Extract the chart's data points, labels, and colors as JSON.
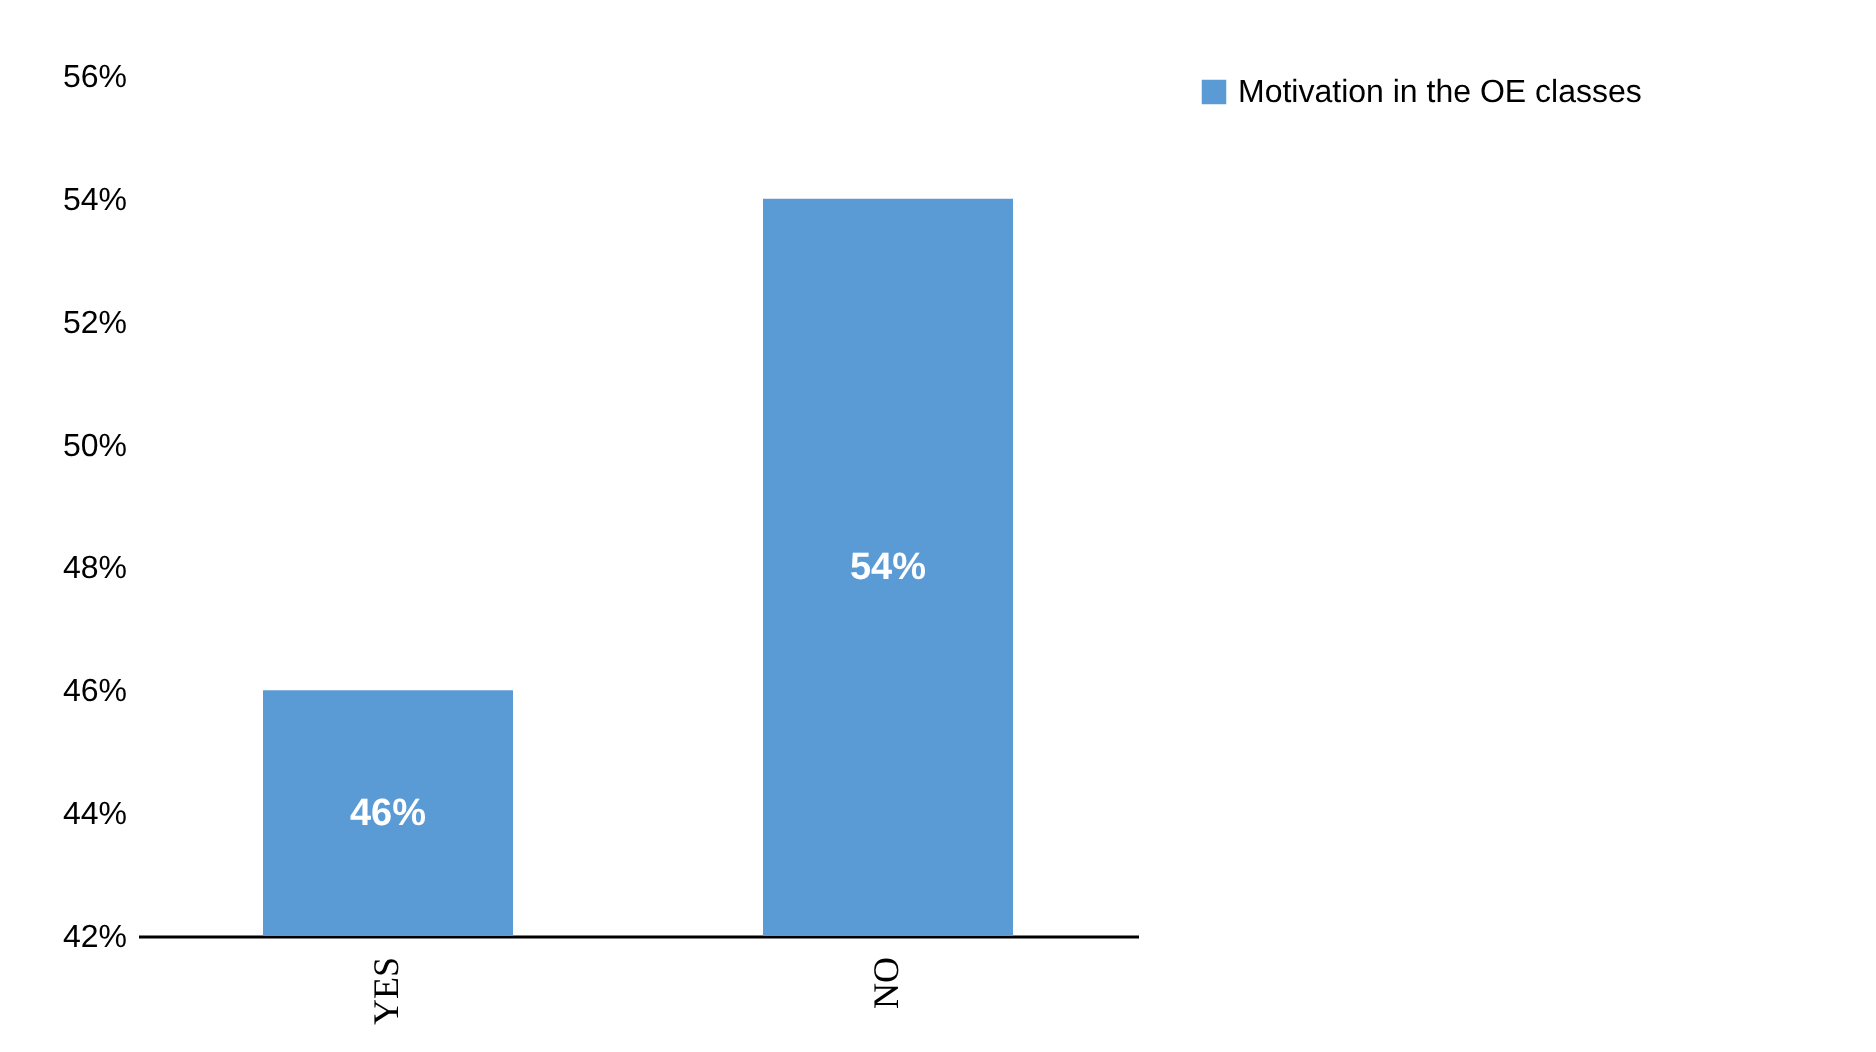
{
  "chart_data": {
    "type": "bar",
    "categories": [
      "YES",
      "NO"
    ],
    "series": [
      {
        "name": "Motivation in the OE classes",
        "color": "#5b9bd5",
        "values": [
          46,
          54
        ]
      }
    ],
    "value_labels": [
      "46%",
      "54%"
    ],
    "ylim": [
      42,
      56
    ],
    "yticks": [
      {
        "value": 42,
        "label": "42%"
      },
      {
        "value": 44,
        "label": "44%"
      },
      {
        "value": 46,
        "label": "46%"
      },
      {
        "value": 48,
        "label": "48%"
      },
      {
        "value": 50,
        "label": "50%"
      },
      {
        "value": 52,
        "label": "52%"
      },
      {
        "value": 54,
        "label": "54%"
      },
      {
        "value": 56,
        "label": "56%"
      }
    ],
    "legend": "right",
    "grid": false
  }
}
